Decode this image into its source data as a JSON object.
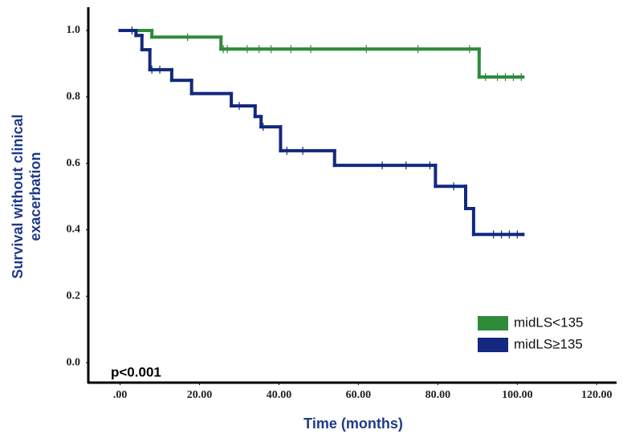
{
  "chart_data": {
    "type": "step",
    "x_label": "Time (months)",
    "y_label": [
      "Survival without clinical",
      "exacerbation"
    ],
    "annotation": "p<0.001",
    "legend": "lower right",
    "xlim": [
      -8,
      125
    ],
    "ylim": [
      -0.06,
      1.07
    ],
    "xticks": [
      {
        "value": 0,
        "label": ".00"
      },
      {
        "value": 20,
        "label": "20.00"
      },
      {
        "value": 40,
        "label": "40.00"
      },
      {
        "value": 60,
        "label": "60.00"
      },
      {
        "value": 80,
        "label": "80.00"
      },
      {
        "value": 100,
        "label": "100.00"
      },
      {
        "value": 120,
        "label": "120.00"
      }
    ],
    "yticks": [
      {
        "value": 0,
        "label": "0.0"
      },
      {
        "value": 0.2,
        "label": "0.2"
      },
      {
        "value": 0.4,
        "label": "0.4"
      },
      {
        "value": 0.6,
        "label": "0.6"
      },
      {
        "value": 0.8,
        "label": "0.8"
      },
      {
        "value": 1,
        "label": "1.0"
      }
    ],
    "series": [
      {
        "name": "midLS<135",
        "color": "#2e8b3a",
        "x": [
          0,
          8,
          25.4,
          90.4,
          101.4
        ],
        "values": [
          1.0,
          0.98,
          0.944,
          0.86,
          0.86
        ],
        "censored": [
          17,
          26,
          27,
          32,
          35,
          38,
          43,
          48,
          62,
          75,
          88,
          92,
          95,
          97,
          99,
          101
        ]
      },
      {
        "name": "midLS≥135",
        "color": "#13287e",
        "x": [
          0,
          4,
          5.5,
          7.5,
          13,
          18,
          28,
          34,
          35.5,
          40.4,
          54,
          79.4,
          87,
          89,
          101.4
        ],
        "values": [
          1.0,
          0.985,
          0.942,
          0.882,
          0.85,
          0.81,
          0.773,
          0.741,
          0.71,
          0.638,
          0.594,
          0.531,
          0.464,
          0.386,
          0.386
        ],
        "censored": [
          3,
          8,
          10,
          30,
          36,
          42,
          46,
          66,
          72,
          78,
          84,
          94,
          96,
          98,
          100
        ]
      }
    ]
  }
}
